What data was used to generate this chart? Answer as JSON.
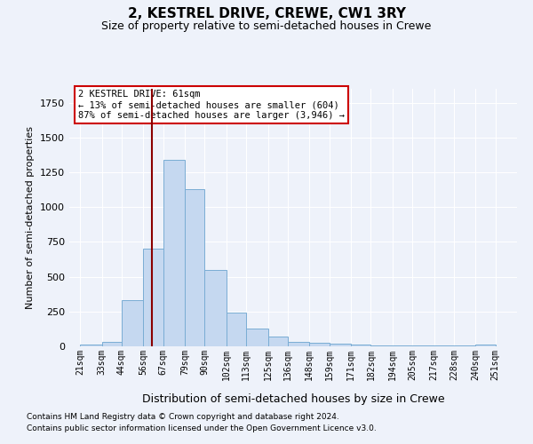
{
  "title": "2, KESTREL DRIVE, CREWE, CW1 3RY",
  "subtitle": "Size of property relative to semi-detached houses in Crewe",
  "xlabel": "Distribution of semi-detached houses by size in Crewe",
  "ylabel": "Number of semi-detached properties",
  "footnote1": "Contains HM Land Registry data © Crown copyright and database right 2024.",
  "footnote2": "Contains public sector information licensed under the Open Government Licence v3.0.",
  "annotation_title": "2 KESTREL DRIVE: 61sqm",
  "annotation_line1": "← 13% of semi-detached houses are smaller (604)",
  "annotation_line2": "87% of semi-detached houses are larger (3,946) →",
  "property_size": 61,
  "bar_left_edges": [
    21,
    33,
    44,
    56,
    67,
    79,
    90,
    102,
    113,
    125,
    136,
    148,
    159,
    171,
    182,
    194,
    205,
    217,
    228,
    240
  ],
  "bar_widths": [
    12,
    11,
    12,
    11,
    12,
    11,
    12,
    11,
    12,
    11,
    12,
    11,
    12,
    11,
    12,
    11,
    12,
    11,
    12,
    11
  ],
  "bar_heights": [
    10,
    30,
    330,
    700,
    1340,
    1130,
    550,
    240,
    125,
    70,
    30,
    25,
    20,
    10,
    5,
    5,
    5,
    5,
    5,
    15
  ],
  "tick_labels": [
    "21sqm",
    "33sqm",
    "44sqm",
    "56sqm",
    "67sqm",
    "79sqm",
    "90sqm",
    "102sqm",
    "113sqm",
    "125sqm",
    "136sqm",
    "148sqm",
    "159sqm",
    "171sqm",
    "182sqm",
    "194sqm",
    "205sqm",
    "217sqm",
    "228sqm",
    "240sqm",
    "251sqm"
  ],
  "tick_positions": [
    21,
    33,
    44,
    56,
    67,
    79,
    90,
    102,
    113,
    125,
    136,
    148,
    159,
    171,
    182,
    194,
    205,
    217,
    228,
    240,
    251
  ],
  "bar_color": "#c5d8f0",
  "bar_edge_color": "#7aadd4",
  "vline_color": "#8b0000",
  "vline_x": 61,
  "ylim": [
    0,
    1850
  ],
  "xlim": [
    15,
    263
  ],
  "bg_color": "#eef2fa",
  "grid_color": "#ffffff",
  "annotation_box_color": "#ffffff",
  "annotation_box_edge": "#cc0000",
  "title_fontsize": 11,
  "subtitle_fontsize": 9
}
